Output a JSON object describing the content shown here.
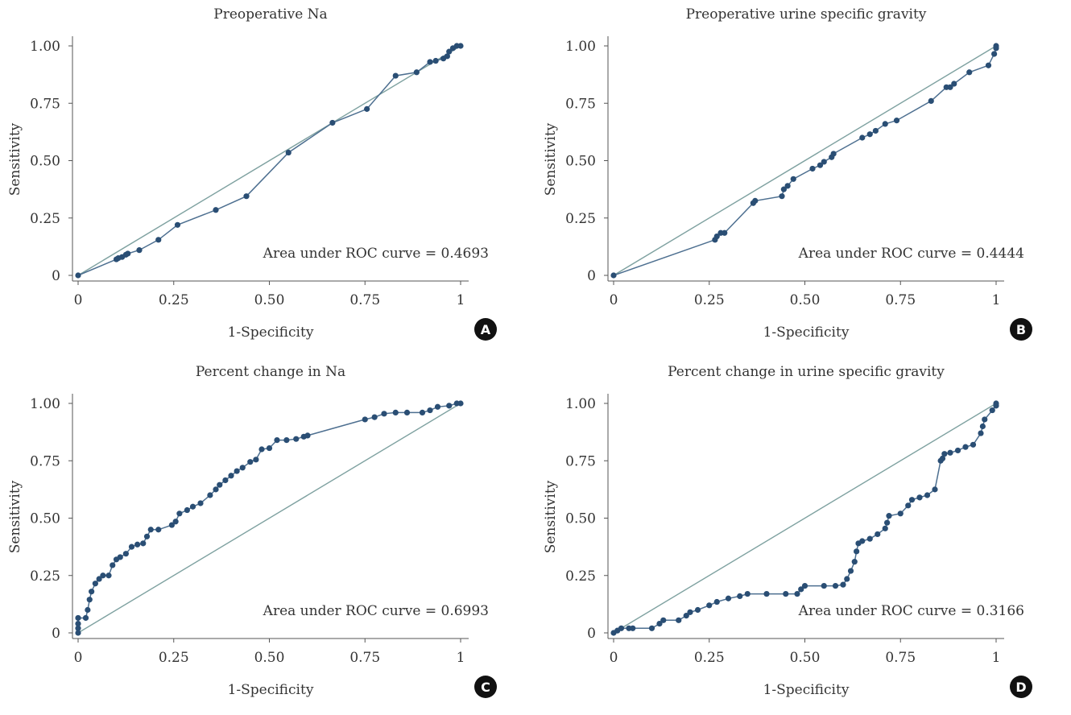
{
  "chart_data": [
    {
      "type": "line",
      "panel": "A",
      "title": "Preoperative Na",
      "xlabel": "1-Specificity",
      "ylabel": "Sensitivity",
      "xlim": [
        0,
        1
      ],
      "ylim": [
        0,
        1
      ],
      "xticks": [
        "0",
        "0.25",
        "0.50",
        "0.75",
        "1"
      ],
      "yticks": [
        "0",
        "0.25",
        "0.50",
        "0.75",
        "1.00"
      ],
      "annotation": "Area under ROC curve = 0.4693",
      "reference_line": [
        [
          0,
          0
        ],
        [
          1,
          1
        ]
      ],
      "series": [
        {
          "x": [
            0,
            0.1,
            0.105,
            0.115,
            0.125,
            0.13,
            0.16,
            0.21,
            0.26,
            0.36,
            0.44,
            0.55,
            0.665,
            0.755,
            0.83,
            0.885,
            0.92,
            0.935,
            0.955,
            0.965,
            0.97,
            0.98,
            0.99,
            1.0
          ],
          "y": [
            0,
            0.07,
            0.075,
            0.08,
            0.09,
            0.095,
            0.11,
            0.155,
            0.22,
            0.285,
            0.345,
            0.535,
            0.665,
            0.725,
            0.87,
            0.885,
            0.93,
            0.935,
            0.945,
            0.955,
            0.975,
            0.99,
            1.0,
            1.0
          ]
        }
      ]
    },
    {
      "type": "line",
      "panel": "B",
      "title": "Preoperative urine specific gravity",
      "xlabel": "1-Specificity",
      "ylabel": "Sensitivity",
      "xlim": [
        0,
        1
      ],
      "ylim": [
        0,
        1
      ],
      "xticks": [
        "0",
        "0.25",
        "0.50",
        "0.75",
        "1"
      ],
      "yticks": [
        "0",
        "0.25",
        "0.50",
        "0.75",
        "1.00"
      ],
      "annotation": "Area under ROC curve = 0.4444",
      "reference_line": [
        [
          0,
          0
        ],
        [
          1,
          1
        ]
      ],
      "series": [
        {
          "x": [
            0,
            0.265,
            0.27,
            0.28,
            0.29,
            0.365,
            0.37,
            0.44,
            0.445,
            0.455,
            0.47,
            0.52,
            0.54,
            0.55,
            0.57,
            0.575,
            0.65,
            0.67,
            0.685,
            0.71,
            0.74,
            0.83,
            0.87,
            0.88,
            0.89,
            0.93,
            0.98,
            0.995,
            1.0,
            1.0
          ],
          "y": [
            0,
            0.155,
            0.17,
            0.185,
            0.185,
            0.315,
            0.325,
            0.345,
            0.375,
            0.39,
            0.42,
            0.465,
            0.48,
            0.495,
            0.515,
            0.53,
            0.6,
            0.615,
            0.63,
            0.66,
            0.675,
            0.76,
            0.82,
            0.82,
            0.835,
            0.885,
            0.915,
            0.965,
            0.99,
            1.0
          ]
        }
      ]
    },
    {
      "type": "line",
      "panel": "C",
      "title": "Percent change in Na",
      "xlabel": "1-Specificity",
      "ylabel": "Sensitivity",
      "xlim": [
        0,
        1
      ],
      "ylim": [
        0,
        1
      ],
      "xticks": [
        "0",
        "0.25",
        "0.50",
        "0.75",
        "1"
      ],
      "yticks": [
        "0",
        "0.25",
        "0.50",
        "0.75",
        "1.00"
      ],
      "annotation": "Area under ROC curve = 0.6993",
      "reference_line": [
        [
          0,
          0
        ],
        [
          1,
          1
        ]
      ],
      "series": [
        {
          "x": [
            0,
            0,
            0,
            0,
            0.02,
            0.025,
            0.03,
            0.035,
            0.045,
            0.055,
            0.065,
            0.08,
            0.09,
            0.1,
            0.11,
            0.125,
            0.14,
            0.155,
            0.17,
            0.18,
            0.19,
            0.21,
            0.245,
            0.255,
            0.265,
            0.285,
            0.3,
            0.32,
            0.345,
            0.36,
            0.37,
            0.385,
            0.4,
            0.415,
            0.43,
            0.45,
            0.465,
            0.48,
            0.5,
            0.52,
            0.545,
            0.57,
            0.59,
            0.6,
            0.75,
            0.775,
            0.8,
            0.83,
            0.86,
            0.9,
            0.92,
            0.94,
            0.97,
            0.99,
            1.0
          ],
          "y": [
            0,
            0.02,
            0.04,
            0.065,
            0.065,
            0.1,
            0.145,
            0.18,
            0.215,
            0.235,
            0.25,
            0.25,
            0.295,
            0.32,
            0.33,
            0.345,
            0.375,
            0.385,
            0.39,
            0.42,
            0.45,
            0.45,
            0.47,
            0.485,
            0.52,
            0.535,
            0.55,
            0.565,
            0.6,
            0.625,
            0.645,
            0.665,
            0.685,
            0.705,
            0.72,
            0.745,
            0.755,
            0.8,
            0.805,
            0.84,
            0.84,
            0.845,
            0.855,
            0.86,
            0.93,
            0.94,
            0.955,
            0.96,
            0.96,
            0.96,
            0.97,
            0.985,
            0.99,
            1.0,
            1.0
          ]
        }
      ]
    },
    {
      "type": "line",
      "panel": "D",
      "title": "Percent change in urine specific gravity",
      "xlabel": "1-Specificity",
      "ylabel": "Sensitivity",
      "xlim": [
        0,
        1
      ],
      "ylim": [
        0,
        1
      ],
      "xticks": [
        "0",
        "0.25",
        "0.50",
        "0.75",
        "1"
      ],
      "yticks": [
        "0",
        "0.25",
        "0.50",
        "0.75",
        "1.00"
      ],
      "annotation": "Area under ROC curve = 0.3166",
      "reference_line": [
        [
          0,
          0
        ],
        [
          1,
          1
        ]
      ],
      "series": [
        {
          "x": [
            0,
            0.01,
            0.02,
            0.04,
            0.05,
            0.1,
            0.12,
            0.13,
            0.17,
            0.19,
            0.2,
            0.22,
            0.25,
            0.27,
            0.3,
            0.33,
            0.35,
            0.4,
            0.45,
            0.48,
            0.49,
            0.5,
            0.55,
            0.58,
            0.6,
            0.61,
            0.62,
            0.63,
            0.635,
            0.64,
            0.65,
            0.67,
            0.69,
            0.71,
            0.715,
            0.72,
            0.75,
            0.77,
            0.78,
            0.8,
            0.82,
            0.84,
            0.855,
            0.86,
            0.865,
            0.88,
            0.9,
            0.92,
            0.94,
            0.96,
            0.965,
            0.97,
            0.99,
            1.0,
            1.0
          ],
          "y": [
            0,
            0.01,
            0.02,
            0.02,
            0.02,
            0.02,
            0.04,
            0.055,
            0.055,
            0.075,
            0.09,
            0.1,
            0.12,
            0.135,
            0.15,
            0.16,
            0.17,
            0.17,
            0.17,
            0.17,
            0.19,
            0.205,
            0.205,
            0.205,
            0.21,
            0.235,
            0.27,
            0.31,
            0.355,
            0.39,
            0.4,
            0.41,
            0.43,
            0.455,
            0.48,
            0.51,
            0.52,
            0.555,
            0.58,
            0.59,
            0.6,
            0.625,
            0.75,
            0.76,
            0.78,
            0.785,
            0.795,
            0.81,
            0.82,
            0.87,
            0.9,
            0.93,
            0.97,
            0.99,
            1.0
          ]
        }
      ]
    }
  ],
  "colors": {
    "curve": "#2a4e74",
    "reference": "#7ea1a0",
    "axis": "#555555",
    "badge": "#111111"
  },
  "badges": [
    "A",
    "B",
    "C",
    "D"
  ]
}
